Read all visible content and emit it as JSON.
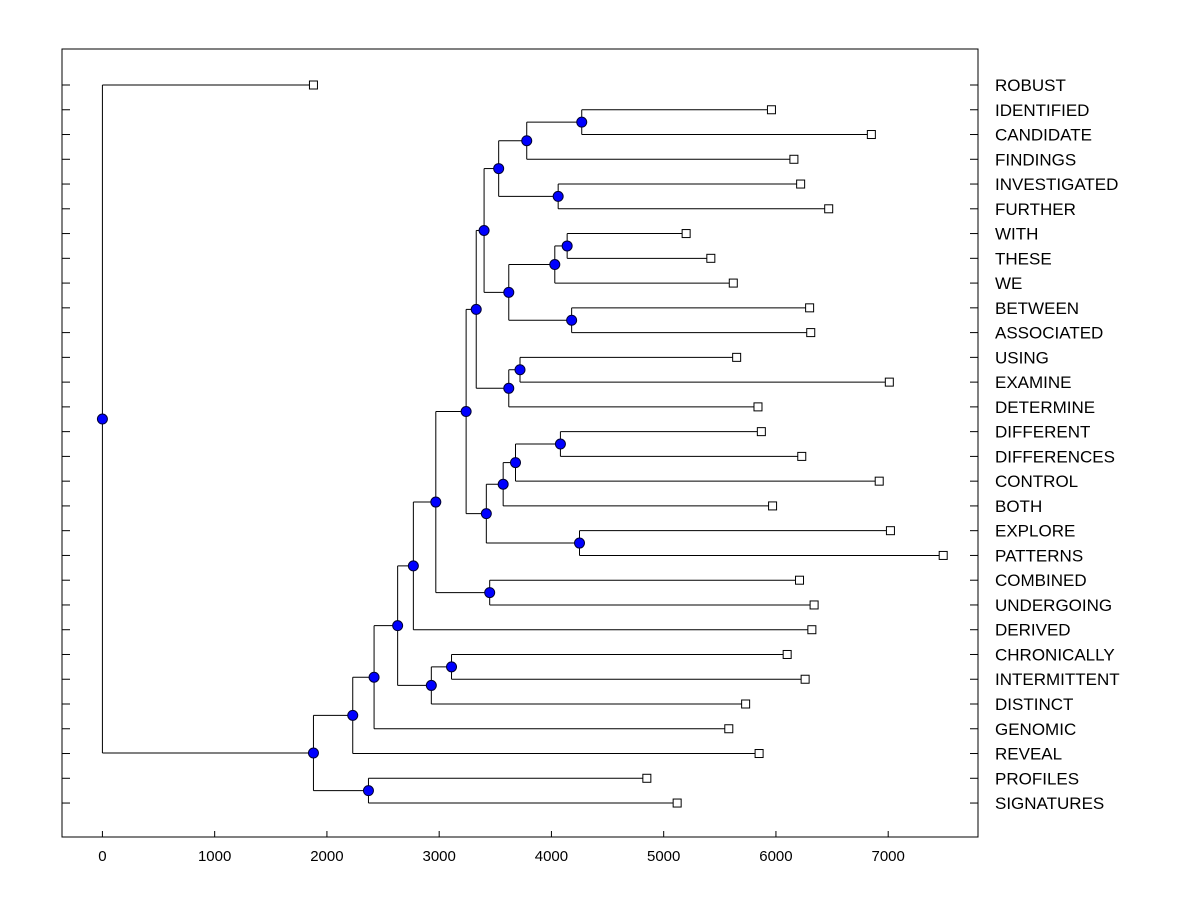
{
  "chart_data": {
    "type": "dendrogram",
    "orientation": "horizontal",
    "title": "",
    "xlabel": "",
    "ylabel": "",
    "xlim": [
      -360,
      7800
    ],
    "x_ticks": [
      0,
      1000,
      2000,
      3000,
      4000,
      5000,
      6000,
      7000
    ],
    "grid": false,
    "colors": {
      "node_fill": "#0000ff",
      "leaf_fill": "#ffffff",
      "line": "#000000",
      "background": "#ffffff"
    },
    "leaves": [
      {
        "label": "ROBUST",
        "value": 1880
      },
      {
        "label": "IDENTIFIED",
        "value": 5960
      },
      {
        "label": "CANDIDATE",
        "value": 6850
      },
      {
        "label": "FINDINGS",
        "value": 6160
      },
      {
        "label": "INVESTIGATED",
        "value": 6220
      },
      {
        "label": "FURTHER",
        "value": 6470
      },
      {
        "label": "WITH",
        "value": 5200
      },
      {
        "label": "THESE",
        "value": 5420
      },
      {
        "label": "WE",
        "value": 5620
      },
      {
        "label": "BETWEEN",
        "value": 6300
      },
      {
        "label": "ASSOCIATED",
        "value": 6310
      },
      {
        "label": "USING",
        "value": 5650
      },
      {
        "label": "EXAMINE",
        "value": 7010
      },
      {
        "label": "DETERMINE",
        "value": 5840
      },
      {
        "label": "DIFFERENT",
        "value": 5870
      },
      {
        "label": "DIFFERENCES",
        "value": 6230
      },
      {
        "label": "CONTROL",
        "value": 6920
      },
      {
        "label": "BOTH",
        "value": 5970
      },
      {
        "label": "EXPLORE",
        "value": 7020
      },
      {
        "label": "PATTERNS",
        "value": 7490
      },
      {
        "label": "COMBINED",
        "value": 6210
      },
      {
        "label": "UNDERGOING",
        "value": 6340
      },
      {
        "label": "DERIVED",
        "value": 6320
      },
      {
        "label": "CHRONICALLY",
        "value": 6100
      },
      {
        "label": "INTERMITTENT",
        "value": 6260
      },
      {
        "label": "DISTINCT",
        "value": 5730
      },
      {
        "label": "GENOMIC",
        "value": 5580
      },
      {
        "label": "REVEAL",
        "value": 5850
      },
      {
        "label": "PROFILES",
        "value": 4850
      },
      {
        "label": "SIGNATURES",
        "value": 5120
      }
    ],
    "merges": [
      {
        "id": "n1",
        "value": 4270,
        "children": [
          "L1",
          "L2"
        ]
      },
      {
        "id": "n2",
        "value": 3780,
        "children": [
          "n1",
          "L3"
        ]
      },
      {
        "id": "n3",
        "value": 4060,
        "children": [
          "L4",
          "L5"
        ]
      },
      {
        "id": "n4",
        "value": 3530,
        "children": [
          "n2",
          "n3"
        ]
      },
      {
        "id": "n5",
        "value": 4140,
        "children": [
          "L6",
          "L7"
        ]
      },
      {
        "id": "n6",
        "value": 4030,
        "children": [
          "n5",
          "L8"
        ]
      },
      {
        "id": "n7",
        "value": 4180,
        "children": [
          "L9",
          "L10"
        ]
      },
      {
        "id": "n8",
        "value": 3620,
        "children": [
          "n6",
          "n7"
        ]
      },
      {
        "id": "n9",
        "value": 3400,
        "children": [
          "n4",
          "n8"
        ]
      },
      {
        "id": "n10",
        "value": 3720,
        "children": [
          "L11",
          "L12"
        ]
      },
      {
        "id": "n11",
        "value": 3620,
        "children": [
          "n10",
          "L13"
        ]
      },
      {
        "id": "n12",
        "value": 3330,
        "children": [
          "n9",
          "n11"
        ]
      },
      {
        "id": "n13",
        "value": 4080,
        "children": [
          "L14",
          "L15"
        ]
      },
      {
        "id": "n14",
        "value": 3680,
        "children": [
          "n13",
          "L16"
        ]
      },
      {
        "id": "n15",
        "value": 3570,
        "children": [
          "n14",
          "L17"
        ]
      },
      {
        "id": "n16",
        "value": 4250,
        "children": [
          "L18",
          "L19"
        ]
      },
      {
        "id": "n17",
        "value": 3420,
        "children": [
          "n15",
          "n16"
        ]
      },
      {
        "id": "n18",
        "value": 3240,
        "children": [
          "n12",
          "n17"
        ]
      },
      {
        "id": "n19",
        "value": 3450,
        "children": [
          "L20",
          "L21"
        ]
      },
      {
        "id": "n20",
        "value": 2970,
        "children": [
          "n18",
          "n19"
        ]
      },
      {
        "id": "n21",
        "value": 2770,
        "children": [
          "n20",
          "L22"
        ]
      },
      {
        "id": "n22",
        "value": 3110,
        "children": [
          "L23",
          "L24"
        ]
      },
      {
        "id": "n23",
        "value": 2930,
        "children": [
          "n22",
          "L25"
        ]
      },
      {
        "id": "n24",
        "value": 2630,
        "children": [
          "n21",
          "n23"
        ]
      },
      {
        "id": "n25",
        "value": 2420,
        "children": [
          "n24",
          "L26"
        ]
      },
      {
        "id": "n26",
        "value": 2230,
        "children": [
          "n25",
          "L27"
        ]
      },
      {
        "id": "n27",
        "value": 2370,
        "children": [
          "L28",
          "L29"
        ]
      },
      {
        "id": "n28",
        "value": 1880,
        "children": [
          "n26",
          "n27"
        ]
      },
      {
        "id": "n29",
        "value": 0,
        "children": [
          "L0",
          "n28"
        ]
      }
    ]
  }
}
